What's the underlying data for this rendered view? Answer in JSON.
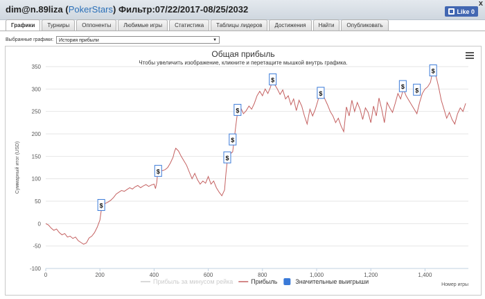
{
  "window": {
    "title_prefix": "dim@n.89liza (",
    "site_name": "PokerStars",
    "title_suffix": ") Фильтр:07/22/2017-08/25/2032",
    "close_label": "x",
    "like_label": "Like 0"
  },
  "tabs": [
    {
      "label": "Графики",
      "active": true
    },
    {
      "label": "Турниры",
      "active": false
    },
    {
      "label": "Оппоненты",
      "active": false
    },
    {
      "label": "Любимые игры",
      "active": false
    },
    {
      "label": "Статистика",
      "active": false
    },
    {
      "label": "Таблицы лидеров",
      "active": false
    },
    {
      "label": "Достижения",
      "active": false
    },
    {
      "label": "Найти",
      "active": false
    },
    {
      "label": "Опубликовать",
      "active": false
    }
  ],
  "filter": {
    "label": "Выбранные графики:",
    "selected": "История прибыли"
  },
  "chart_data": {
    "type": "line",
    "title": "Общая прибыль",
    "subtitle": "Чтобы увеличить изображение, кликните и перетащите мышкой внутрь графика.",
    "xlabel": "Номер игры",
    "ylabel": "Суммарный итог (USD)",
    "xlim": [
      0,
      1560
    ],
    "ylim": [
      -100,
      350
    ],
    "x_ticks": [
      0,
      200,
      400,
      600,
      800,
      1000,
      1200,
      1400
    ],
    "x_tick_labels": [
      "0",
      "200",
      "400",
      "600",
      "800",
      "1,000",
      "1,200",
      "1,400"
    ],
    "y_ticks": [
      -100,
      -50,
      0,
      50,
      100,
      150,
      200,
      250,
      300,
      350
    ],
    "legend": [
      {
        "name": "Прибыль за минусом рейка",
        "color": "#cccccc",
        "kind": "line"
      },
      {
        "name": "Прибыль",
        "color": "#c46060",
        "kind": "line"
      },
      {
        "name": "Значительные выигрыши",
        "color": "#3a7ad8",
        "kind": "box"
      }
    ],
    "series": [
      {
        "name": "Прибыль",
        "color": "#c46060",
        "points": [
          [
            0,
            0
          ],
          [
            10,
            -3
          ],
          [
            20,
            -10
          ],
          [
            30,
            -15
          ],
          [
            40,
            -12
          ],
          [
            50,
            -20
          ],
          [
            60,
            -25
          ],
          [
            70,
            -22
          ],
          [
            80,
            -30
          ],
          [
            90,
            -28
          ],
          [
            100,
            -33
          ],
          [
            110,
            -30
          ],
          [
            120,
            -38
          ],
          [
            130,
            -42
          ],
          [
            140,
            -46
          ],
          [
            150,
            -43
          ],
          [
            160,
            -32
          ],
          [
            170,
            -28
          ],
          [
            180,
            -20
          ],
          [
            190,
            -8
          ],
          [
            200,
            8
          ],
          [
            205,
            30
          ],
          [
            210,
            38
          ],
          [
            220,
            45
          ],
          [
            230,
            48
          ],
          [
            240,
            52
          ],
          [
            250,
            58
          ],
          [
            260,
            66
          ],
          [
            270,
            70
          ],
          [
            280,
            74
          ],
          [
            290,
            72
          ],
          [
            300,
            76
          ],
          [
            310,
            80
          ],
          [
            320,
            77
          ],
          [
            330,
            82
          ],
          [
            340,
            85
          ],
          [
            350,
            80
          ],
          [
            360,
            84
          ],
          [
            370,
            87
          ],
          [
            380,
            83
          ],
          [
            390,
            86
          ],
          [
            400,
            88
          ],
          [
            405,
            78
          ],
          [
            410,
            92
          ],
          [
            415,
            126
          ],
          [
            420,
            122
          ],
          [
            430,
            118
          ],
          [
            440,
            120
          ],
          [
            450,
            125
          ],
          [
            460,
            135
          ],
          [
            470,
            148
          ],
          [
            475,
            160
          ],
          [
            480,
            168
          ],
          [
            490,
            162
          ],
          [
            500,
            150
          ],
          [
            510,
            140
          ],
          [
            520,
            130
          ],
          [
            530,
            115
          ],
          [
            540,
            100
          ],
          [
            550,
            112
          ],
          [
            560,
            98
          ],
          [
            570,
            88
          ],
          [
            580,
            95
          ],
          [
            590,
            90
          ],
          [
            600,
            105
          ],
          [
            610,
            88
          ],
          [
            620,
            95
          ],
          [
            630,
            80
          ],
          [
            640,
            70
          ],
          [
            650,
            62
          ],
          [
            660,
            75
          ],
          [
            665,
            110
          ],
          [
            670,
            140
          ],
          [
            680,
            155
          ],
          [
            690,
            160
          ],
          [
            695,
            185
          ],
          [
            700,
            210
          ],
          [
            705,
            235
          ],
          [
            710,
            255
          ],
          [
            715,
            262
          ],
          [
            720,
            258
          ],
          [
            730,
            245
          ],
          [
            740,
            252
          ],
          [
            750,
            262
          ],
          [
            760,
            255
          ],
          [
            770,
            268
          ],
          [
            780,
            285
          ],
          [
            790,
            295
          ],
          [
            800,
            285
          ],
          [
            810,
            300
          ],
          [
            820,
            290
          ],
          [
            830,
            305
          ],
          [
            838,
            325
          ],
          [
            845,
            310
          ],
          [
            855,
            300
          ],
          [
            865,
            288
          ],
          [
            875,
            298
          ],
          [
            885,
            278
          ],
          [
            895,
            285
          ],
          [
            905,
            265
          ],
          [
            915,
            278
          ],
          [
            925,
            252
          ],
          [
            935,
            275
          ],
          [
            945,
            262
          ],
          [
            955,
            240
          ],
          [
            965,
            222
          ],
          [
            975,
            255
          ],
          [
            985,
            240
          ],
          [
            995,
            255
          ],
          [
            1005,
            275
          ],
          [
            1015,
            300
          ],
          [
            1022,
            290
          ],
          [
            1030,
            278
          ],
          [
            1040,
            265
          ],
          [
            1050,
            250
          ],
          [
            1060,
            240
          ],
          [
            1070,
            225
          ],
          [
            1080,
            235
          ],
          [
            1090,
            218
          ],
          [
            1100,
            205
          ],
          [
            1110,
            260
          ],
          [
            1120,
            240
          ],
          [
            1130,
            275
          ],
          [
            1140,
            250
          ],
          [
            1150,
            270
          ],
          [
            1160,
            255
          ],
          [
            1170,
            232
          ],
          [
            1180,
            258
          ],
          [
            1190,
            248
          ],
          [
            1200,
            225
          ],
          [
            1210,
            262
          ],
          [
            1220,
            240
          ],
          [
            1230,
            280
          ],
          [
            1240,
            255
          ],
          [
            1250,
            225
          ],
          [
            1260,
            270
          ],
          [
            1270,
            258
          ],
          [
            1280,
            248
          ],
          [
            1290,
            268
          ],
          [
            1300,
            290
          ],
          [
            1310,
            278
          ],
          [
            1320,
            300
          ],
          [
            1330,
            285
          ],
          [
            1340,
            275
          ],
          [
            1350,
            265
          ],
          [
            1360,
            255
          ],
          [
            1370,
            245
          ],
          [
            1380,
            270
          ],
          [
            1390,
            290
          ],
          [
            1400,
            300
          ],
          [
            1410,
            305
          ],
          [
            1420,
            315
          ],
          [
            1430,
            345
          ],
          [
            1440,
            330
          ],
          [
            1450,
            305
          ],
          [
            1460,
            275
          ],
          [
            1470,
            255
          ],
          [
            1480,
            235
          ],
          [
            1490,
            248
          ],
          [
            1500,
            232
          ],
          [
            1510,
            222
          ],
          [
            1520,
            245
          ],
          [
            1530,
            258
          ],
          [
            1540,
            250
          ],
          [
            1550,
            268
          ]
        ]
      }
    ],
    "markers": [
      {
        "x": 205,
        "y": 40,
        "label": "$"
      },
      {
        "x": 415,
        "y": 116,
        "label": "$"
      },
      {
        "x": 670,
        "y": 146,
        "label": "$"
      },
      {
        "x": 690,
        "y": 186,
        "label": "$"
      },
      {
        "x": 708,
        "y": 252,
        "label": "$"
      },
      {
        "x": 838,
        "y": 320,
        "label": "$"
      },
      {
        "x": 1015,
        "y": 290,
        "label": "$"
      },
      {
        "x": 1318,
        "y": 305,
        "label": "$"
      },
      {
        "x": 1370,
        "y": 297,
        "label": "$"
      },
      {
        "x": 1430,
        "y": 340,
        "label": "$"
      }
    ]
  }
}
